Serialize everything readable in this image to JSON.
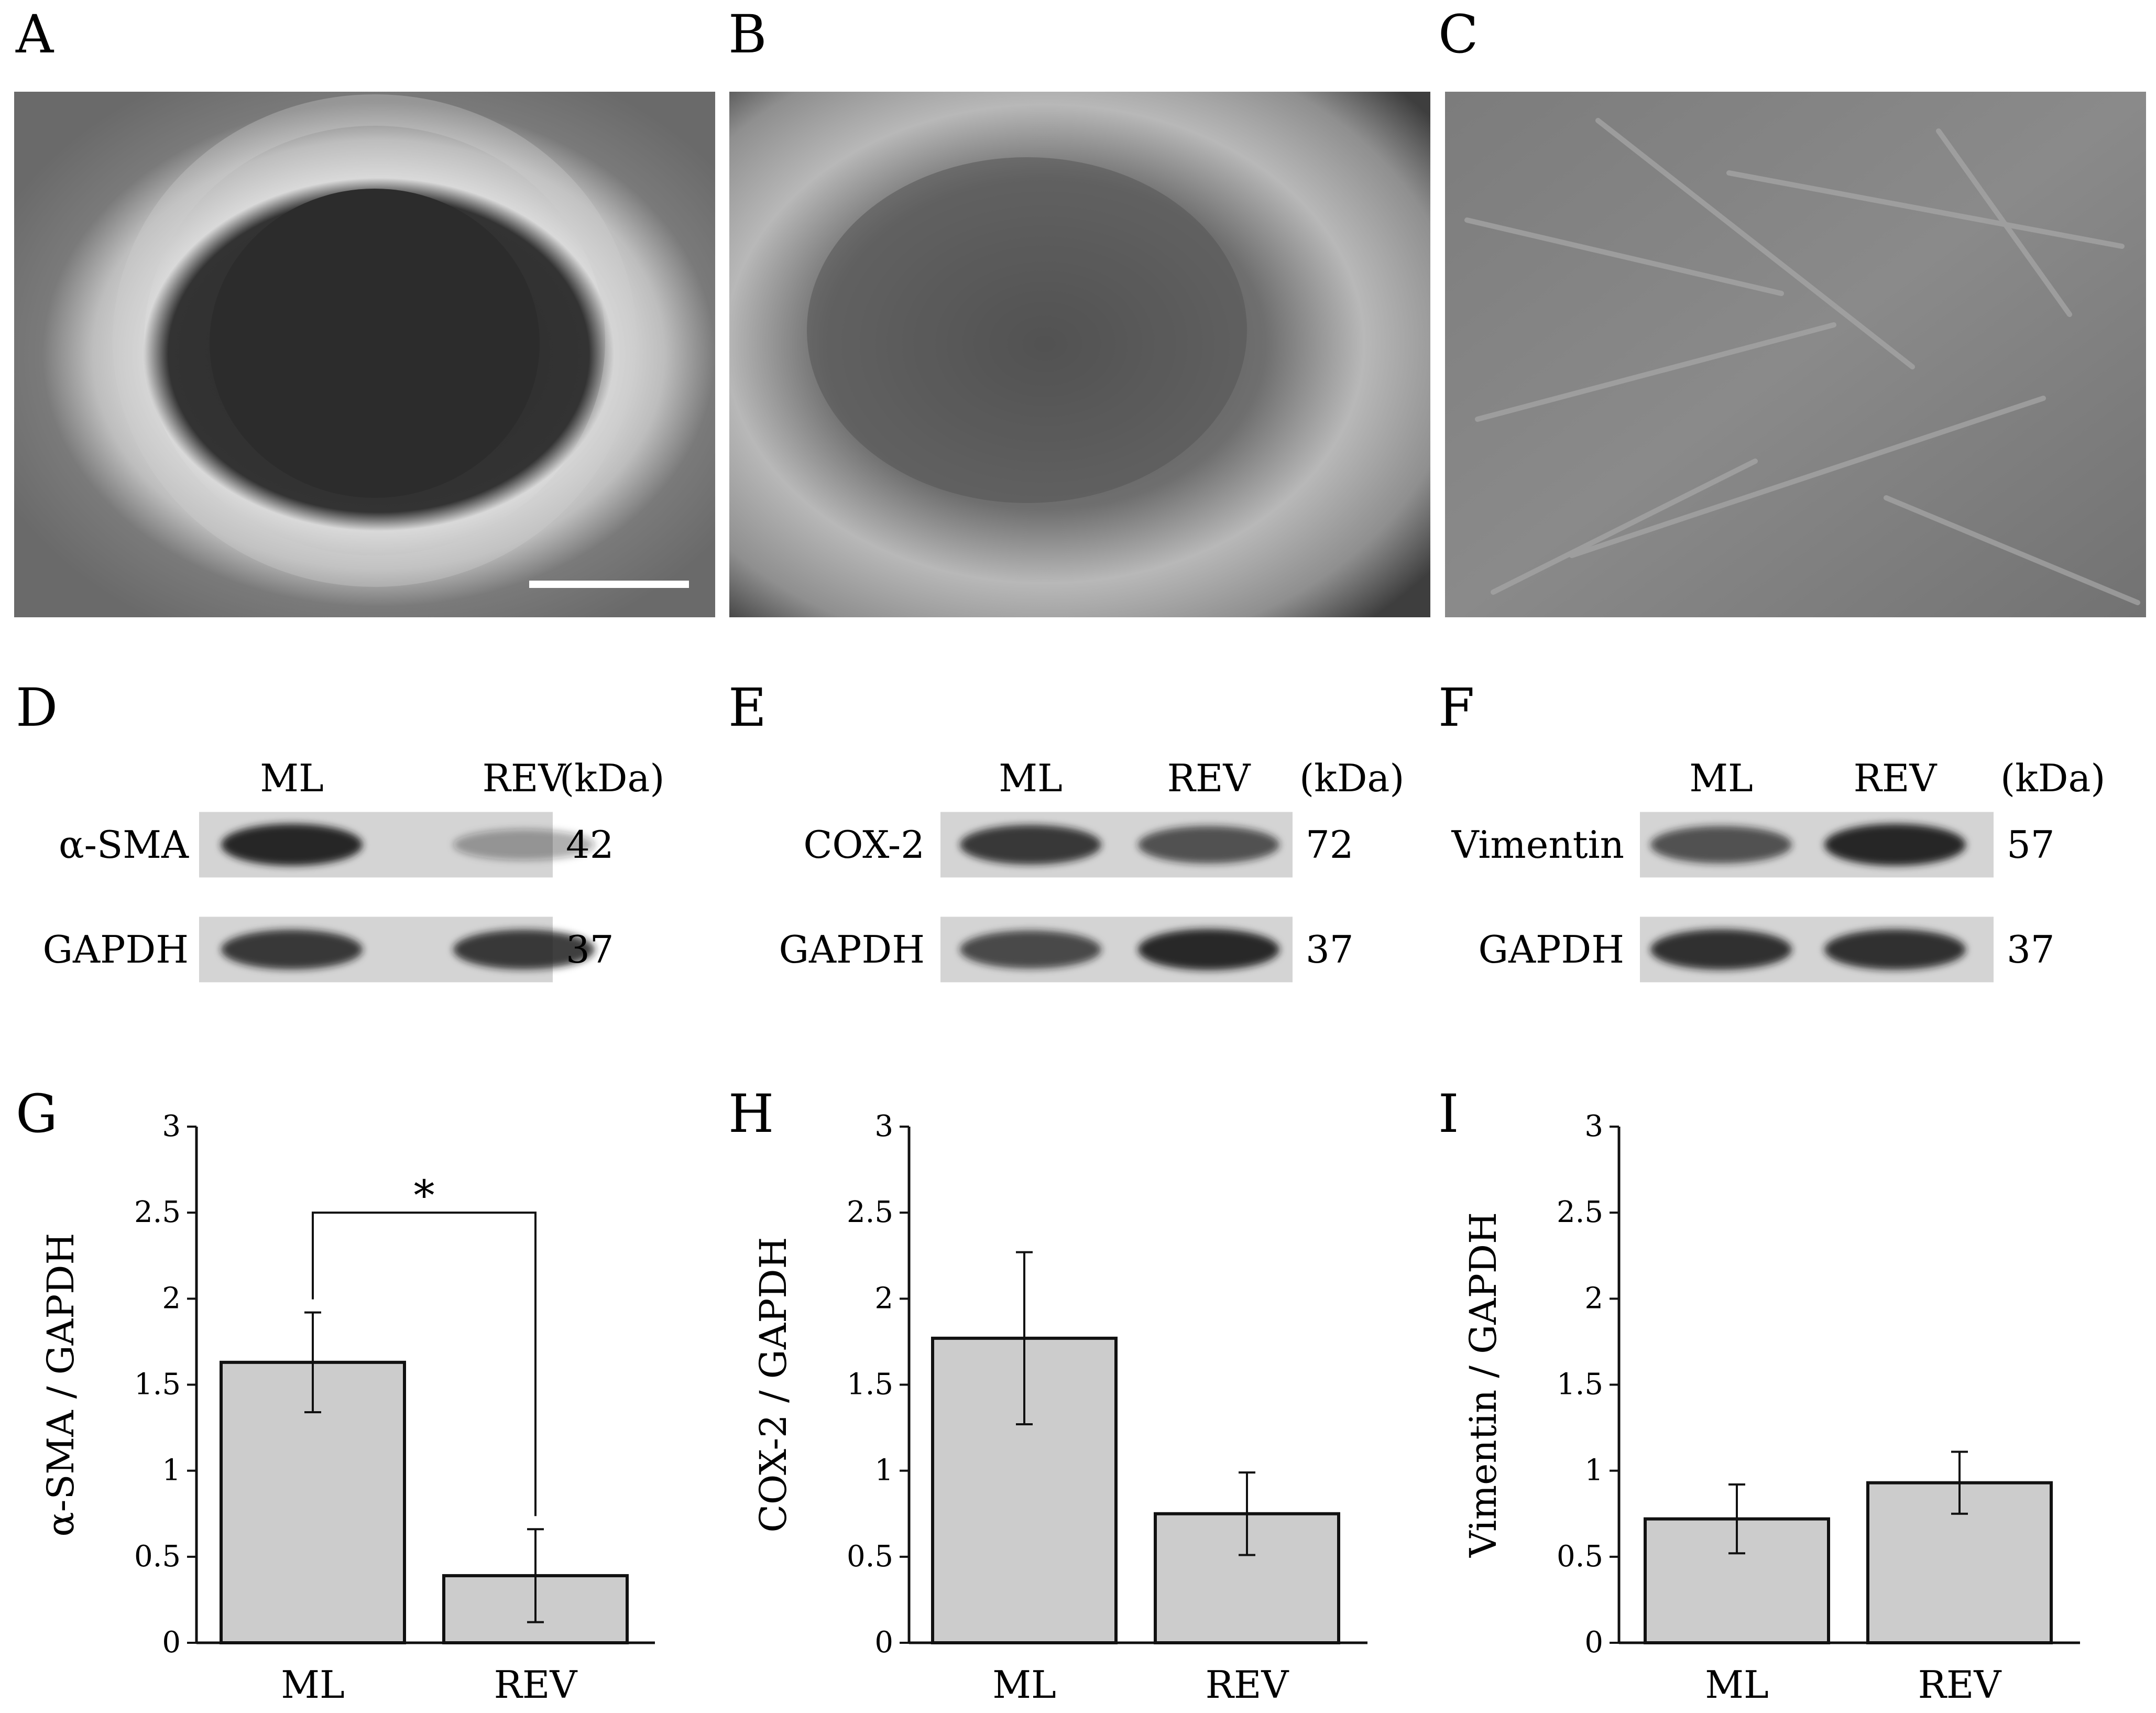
{
  "panel_labels": [
    "A",
    "B",
    "C",
    "D",
    "E",
    "F",
    "G",
    "H",
    "I"
  ],
  "blots": [
    {
      "id": "D",
      "lane_labels": [
        "ML",
        "REV"
      ],
      "unit_label": "(kDa)",
      "rows": [
        {
          "protein": "α-SMA",
          "kda": "42",
          "band_intensity": [
            1.0,
            0.25
          ]
        },
        {
          "protein": "GAPDH",
          "kda": "37",
          "band_intensity": [
            0.85,
            0.85
          ]
        }
      ]
    },
    {
      "id": "E",
      "lane_labels": [
        "ML",
        "REV"
      ],
      "unit_label": "(kDa)",
      "rows": [
        {
          "protein": "COX-2",
          "kda": "72",
          "band_intensity": [
            0.85,
            0.7
          ]
        },
        {
          "protein": "GAPDH",
          "kda": "37",
          "band_intensity": [
            0.75,
            0.95
          ]
        }
      ]
    },
    {
      "id": "F",
      "lane_labels": [
        "ML",
        "REV"
      ],
      "unit_label": "(kDa)",
      "rows": [
        {
          "protein": "Vimentin",
          "kda": "57",
          "band_intensity": [
            0.7,
            1.0
          ]
        },
        {
          "protein": "GAPDH",
          "kda": "37",
          "band_intensity": [
            0.9,
            0.9
          ]
        }
      ]
    }
  ],
  "colors": {
    "bar_fill": "#cccccc",
    "axis": "#111111",
    "micrograph_background": "#6d6d6d",
    "blot_background": "#d4d4d4",
    "band": "#1a1a1a"
  },
  "chart_data": [
    {
      "panel": "G",
      "type": "bar",
      "categories": [
        "ML",
        "REV"
      ],
      "values": [
        1.63,
        0.39
      ],
      "errors": [
        0.29,
        0.27
      ],
      "ylabel": "α-SMA / GAPDH",
      "ylim": [
        0,
        3
      ],
      "yticks": [
        "0",
        "0.5",
        "1",
        "1.5",
        "2",
        "2.5",
        "3"
      ],
      "significance": "*"
    },
    {
      "panel": "H",
      "type": "bar",
      "categories": [
        "ML",
        "REV"
      ],
      "values": [
        1.77,
        0.75
      ],
      "errors": [
        0.5,
        0.24
      ],
      "ylabel": "COX-2 / GAPDH",
      "ylim": [
        0,
        3
      ],
      "yticks": [
        "0",
        "0.5",
        "1",
        "1.5",
        "2",
        "2.5",
        "3"
      ],
      "significance": ""
    },
    {
      "panel": "I",
      "type": "bar",
      "categories": [
        "ML",
        "REV"
      ],
      "values": [
        0.72,
        0.93
      ],
      "errors": [
        0.2,
        0.18
      ],
      "ylabel": "Vimentin / GAPDH",
      "ylim": [
        0,
        3
      ],
      "yticks": [
        "0",
        "0.5",
        "1",
        "1.5",
        "2",
        "2.5",
        "3"
      ],
      "significance": ""
    }
  ]
}
